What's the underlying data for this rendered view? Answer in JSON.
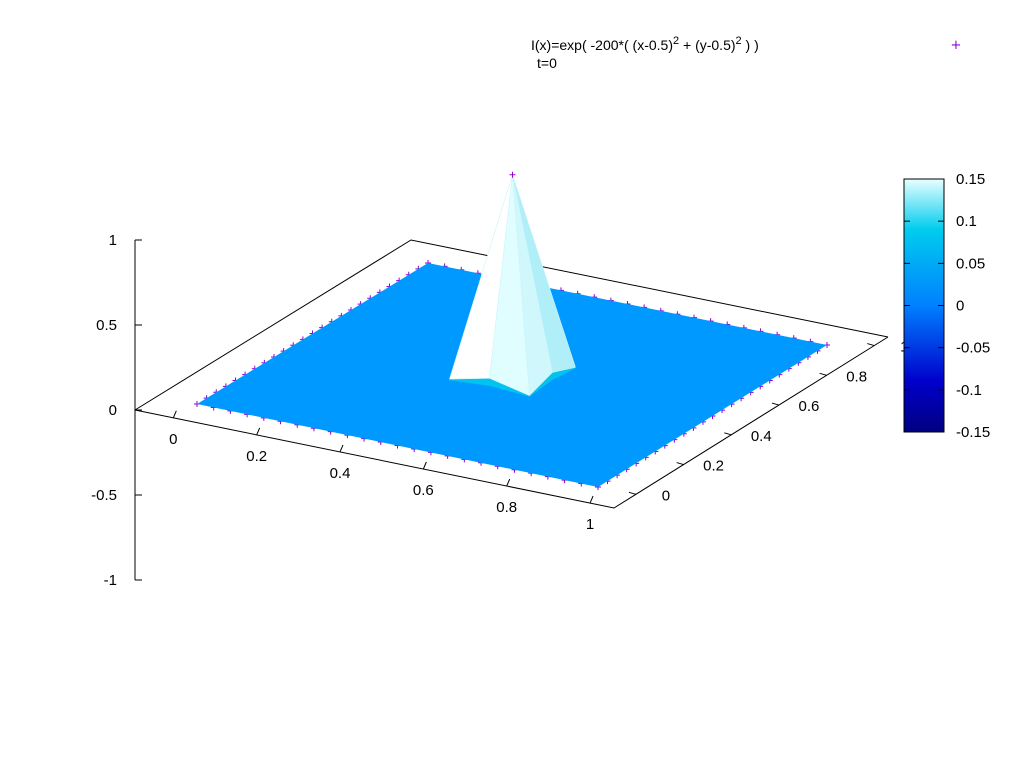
{
  "chart_data": {
    "type": "surface3d",
    "title": "I(x)=exp( -200*( (x-0.5)^2 + (y-0.5)^2 ) )",
    "title_parts": {
      "prefix": "I(x)=exp( -200*( (x-0.5)",
      "exp1": "2",
      "middle": " + (y-0.5)",
      "exp2": "2",
      "suffix": "  ) )"
    },
    "subtitle": "t=0",
    "legend_marker": "+",
    "x": [
      0,
      0.1,
      0.2,
      0.3,
      0.4,
      0.5,
      0.6,
      0.7,
      0.8,
      0.9,
      1.0
    ],
    "y": [
      0,
      0.1,
      0.2,
      0.3,
      0.4,
      0.5,
      0.6,
      0.7,
      0.8,
      0.9,
      1.0
    ],
    "peak": {
      "x": 0.5,
      "y": 0.5,
      "z": 1.0
    },
    "near_peak": [
      {
        "x": 0.4,
        "y": 0.5,
        "z": 0.14
      },
      {
        "x": 0.6,
        "y": 0.5,
        "z": 0.14
      },
      {
        "x": 0.5,
        "y": 0.4,
        "z": 0.14
      },
      {
        "x": 0.5,
        "y": 0.6,
        "z": 0.14
      },
      {
        "x": 0.4,
        "y": 0.4,
        "z": 0.02
      },
      {
        "x": 0.6,
        "y": 0.4,
        "z": 0.02
      },
      {
        "x": 0.4,
        "y": 0.6,
        "z": 0.02
      },
      {
        "x": 0.6,
        "y": 0.6,
        "z": 0.02
      }
    ],
    "xlim": [
      0,
      1
    ],
    "ylim": [
      0,
      1
    ],
    "zlim": [
      -1,
      1
    ],
    "x_ticks": [
      "0",
      "0.2",
      "0.4",
      "0.6",
      "0.8",
      "1"
    ],
    "y_ticks": [
      "0",
      "0.2",
      "0.4",
      "0.6",
      "0.8",
      "1"
    ],
    "z_ticks": [
      "1",
      "0.5",
      "0",
      "-0.5",
      "-1"
    ],
    "colorbar": {
      "range": [
        -0.15,
        0.15
      ],
      "ticks": [
        "0.15",
        "0.1",
        "0.05",
        "0",
        "-0.05",
        "-0.1",
        "-0.15"
      ]
    },
    "colors": {
      "surface_base": "#0099ff",
      "marker": "#9400d3",
      "cb_top": "#e8ffff",
      "cb_mid_high": "#00ccee",
      "cb_mid": "#0080ff",
      "cb_low": "#0000cc",
      "cb_bottom": "#000080"
    }
  }
}
